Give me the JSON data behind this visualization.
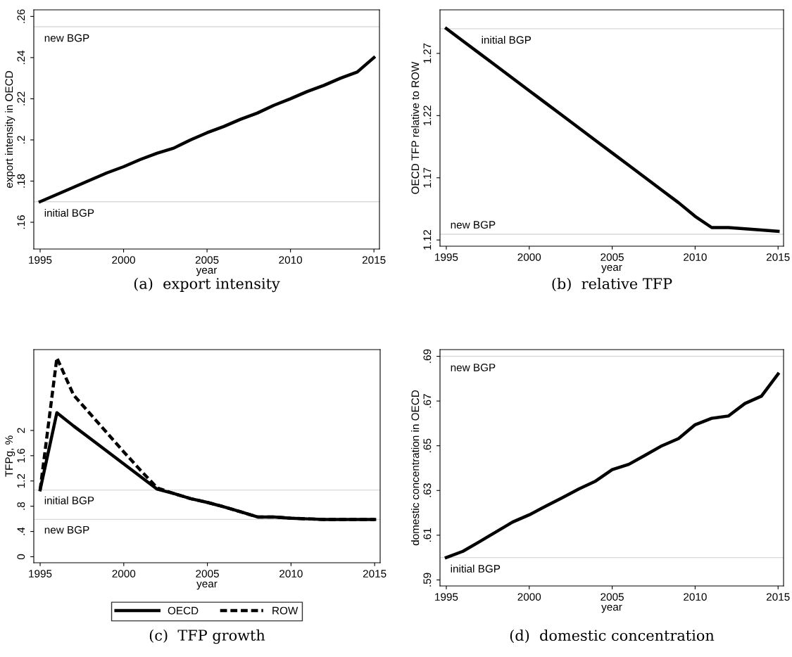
{
  "chart_data": [
    {
      "type": "line",
      "title": "(a)  export intensity",
      "xlabel": "year",
      "ylabel": "export intensity in OECD",
      "x": [
        1995,
        1996,
        1997,
        1998,
        1999,
        2000,
        2001,
        2002,
        2003,
        2004,
        2005,
        2006,
        2007,
        2008,
        2009,
        2010,
        2011,
        2012,
        2013,
        2014,
        2015
      ],
      "series": [
        {
          "color": "#000000",
          "values": [
            0.17,
            0.1735,
            0.177,
            0.1805,
            0.184,
            0.187,
            0.1905,
            0.1935,
            0.196,
            0.2,
            0.2035,
            0.2065,
            0.21,
            0.213,
            0.2168,
            0.22,
            0.2235,
            0.2265,
            0.23,
            0.233,
            0.24
          ]
        }
      ],
      "xlim": [
        1994.62,
        2015.33
      ],
      "xticks": [
        1995,
        2000,
        2005,
        2010,
        2015
      ],
      "ylim": [
        0.147,
        0.2632
      ],
      "yticks": [
        {
          "value": 0.16,
          "label": ".16"
        },
        {
          "value": 0.18,
          "label": ".18"
        },
        {
          "value": 0.2,
          "label": ".2"
        },
        {
          "value": 0.22,
          "label": ".22"
        },
        {
          "value": 0.24,
          "label": ".24"
        },
        {
          "value": 0.26,
          "label": ".26"
        }
      ],
      "ref_lines": [
        {
          "axis": "y",
          "value": 0.255,
          "label": "new BGP",
          "color": "#d9d9d9"
        },
        {
          "axis": "y",
          "value": 0.17,
          "label": "initial BGP",
          "color": "#d9d9d9"
        }
      ],
      "grid": false,
      "legend": false,
      "line_style": "solid"
    },
    {
      "type": "line",
      "title": "(b)  relative TFP",
      "xlabel": "year",
      "ylabel": "OECD TFP relative to ROW",
      "x": [
        1995,
        1996,
        1997,
        1998,
        1999,
        2000,
        2001,
        2002,
        2003,
        2004,
        2005,
        2006,
        2007,
        2008,
        2009,
        2010,
        2011,
        2012,
        2013,
        2014,
        2015
      ],
      "series": [
        {
          "color": "#000000",
          "values": [
            1.29,
            1.28,
            1.27,
            1.26,
            1.25,
            1.24,
            1.23,
            1.22,
            1.21,
            1.2,
            1.19,
            1.18,
            1.17,
            1.16,
            1.15,
            1.139,
            1.13,
            1.13,
            1.129,
            1.128,
            1.127
          ]
        }
      ],
      "xlim": [
        1994.62,
        2015.33
      ],
      "xticks": [
        1995,
        2000,
        2005,
        2010,
        2015
      ],
      "ylim": [
        1.115,
        1.305
      ],
      "yticks": [
        1.12,
        1.17,
        1.22,
        1.27
      ],
      "ref_lines": [
        {
          "axis": "y",
          "value": 1.2898,
          "label": "initial BGP",
          "color": "#d9d9d9"
        },
        {
          "axis": "y",
          "value": 1.1246,
          "label": "new BGP",
          "color": "#d9d9d9"
        }
      ],
      "grid": false,
      "legend": false,
      "line_style": "solid"
    },
    {
      "type": "line",
      "title": "(c)  TFP growth",
      "xlabel": "year",
      "ylabel": "TFPg, %",
      "x": [
        1995,
        1996,
        1997,
        1998,
        1999,
        2000,
        2001,
        2002,
        2003,
        2004,
        2005,
        2006,
        2007,
        2008,
        2009,
        2010,
        2011,
        2012,
        2013,
        2014,
        2015
      ],
      "series": [
        {
          "name": "OECD",
          "color": "#000000",
          "line_style": "solid",
          "values": [
            1.06,
            2.28,
            2.07,
            1.87,
            1.67,
            1.47,
            1.27,
            1.07,
            1.0,
            0.92,
            0.86,
            0.79,
            0.71,
            0.63,
            0.63,
            0.61,
            0.6,
            0.59,
            0.59,
            0.59,
            0.59
          ]
        },
        {
          "name": "ROW",
          "color": "#000000",
          "line_style": "dashed",
          "values": [
            1.06,
            3.15,
            2.56,
            2.26,
            1.96,
            1.66,
            1.37,
            1.09,
            1.0,
            0.92,
            0.86,
            0.79,
            0.71,
            0.63,
            0.63,
            0.61,
            0.6,
            0.59,
            0.59,
            0.59,
            0.59
          ]
        }
      ],
      "xlim": [
        1994.62,
        2015.33
      ],
      "xticks": [
        1995,
        2000,
        2005,
        2010,
        2015
      ],
      "ylim": [
        -0.095,
        3.28
      ],
      "yticks": [
        0,
        {
          "value": 0.4,
          "label": ".4"
        },
        {
          "value": 0.8,
          "label": ".8"
        },
        1.2,
        1.6,
        2
      ],
      "ref_lines": [
        {
          "axis": "y",
          "value": 1.057,
          "label": "initial BGP",
          "color": "#d9d9d9"
        },
        {
          "axis": "y",
          "value": 0.592,
          "label": "new BGP",
          "color": "#d9d9d9"
        }
      ],
      "grid": false,
      "legend": "bottom"
    },
    {
      "type": "line",
      "title": "(d)  domestic concentration",
      "xlabel": "year",
      "ylabel": "domestic concentration in OECD",
      "x": [
        1995,
        1996,
        1997,
        1998,
        1999,
        2000,
        2001,
        2002,
        2003,
        2004,
        2005,
        2006,
        2007,
        2008,
        2009,
        2010,
        2011,
        2012,
        2013,
        2014,
        2015
      ],
      "series": [
        {
          "color": "#000000",
          "values": [
            0.6,
            0.6028,
            0.6071,
            0.6115,
            0.6159,
            0.6191,
            0.623,
            0.6268,
            0.6307,
            0.6342,
            0.6393,
            0.6417,
            0.6458,
            0.65,
            0.6532,
            0.6594,
            0.6623,
            0.6633,
            0.6689,
            0.6722,
            0.6821
          ]
        }
      ],
      "xlim": [
        1994.62,
        2015.33
      ],
      "xticks": [
        1995,
        2000,
        2005,
        2010,
        2015
      ],
      "ylim": [
        0.5873,
        0.693
      ],
      "yticks": [
        {
          "value": 0.59,
          "label": ".59"
        },
        {
          "value": 0.61,
          "label": ".61"
        },
        {
          "value": 0.63,
          "label": ".63"
        },
        {
          "value": 0.65,
          "label": ".65"
        },
        {
          "value": 0.67,
          "label": ".67"
        },
        {
          "value": 0.69,
          "label": ".69"
        }
      ],
      "ref_lines": [
        {
          "axis": "y",
          "value": 0.69,
          "label": "new BGP",
          "color": "#d9d9d9"
        },
        {
          "axis": "y",
          "value": 0.6,
          "label": "initial BGP",
          "color": "#d9d9d9"
        }
      ],
      "grid": false,
      "legend": false,
      "line_style": "solid"
    }
  ]
}
